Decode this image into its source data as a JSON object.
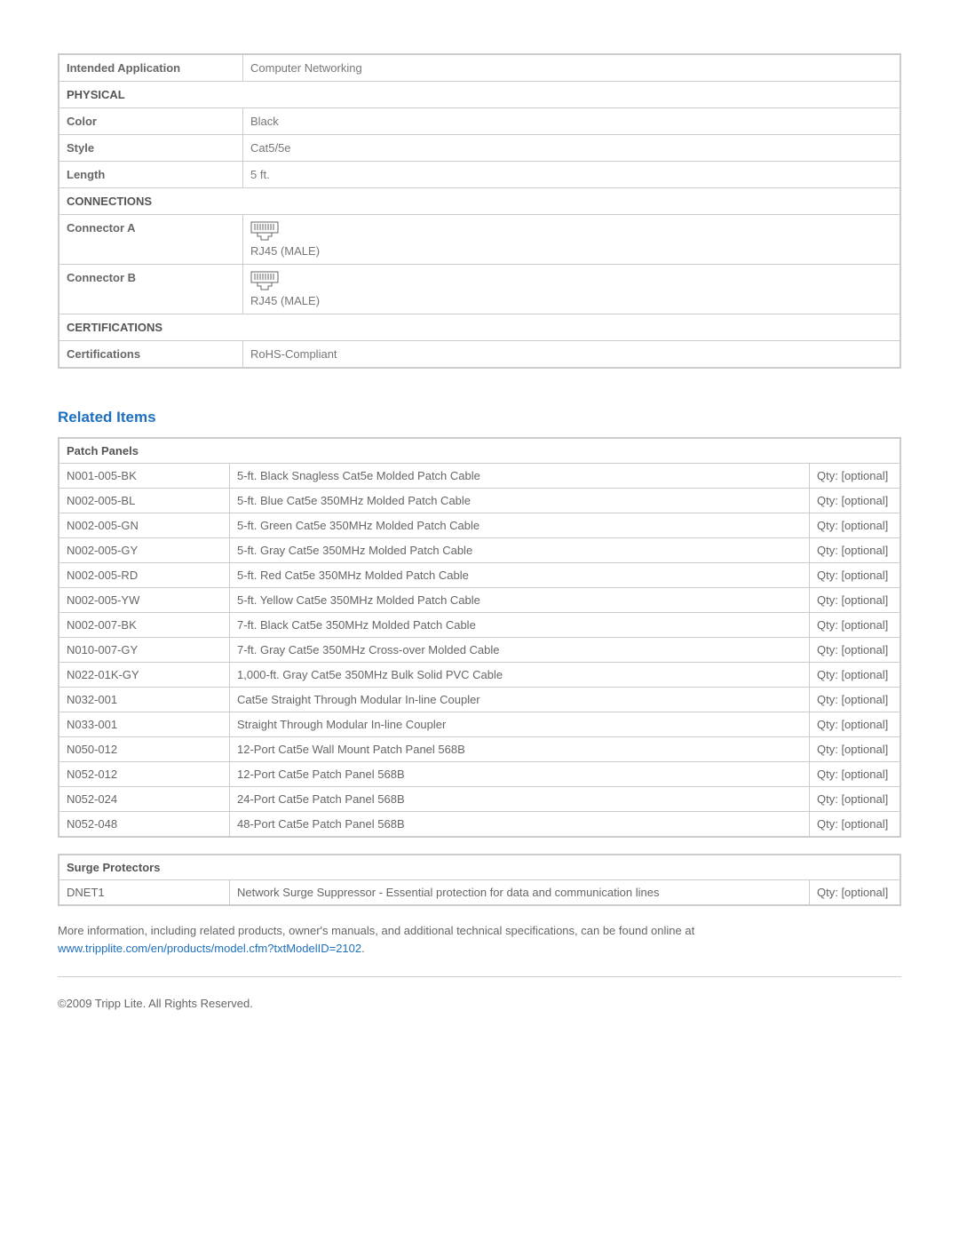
{
  "specs": {
    "intendedApplication": {
      "label": "Intended Application",
      "value": "Computer Networking"
    },
    "physical": {
      "section": "PHYSICAL",
      "color": {
        "label": "Color",
        "value": "Black"
      },
      "style": {
        "label": "Style",
        "value": "Cat5/5e"
      },
      "length": {
        "label": "Length",
        "value": "5 ft."
      }
    },
    "connections": {
      "section": "CONNECTIONS",
      "a": {
        "label": "Connector A",
        "value": "RJ45 (MALE)"
      },
      "b": {
        "label": "Connector B",
        "value": "RJ45 (MALE)"
      }
    },
    "certifications": {
      "section": "CERTIFICATIONS",
      "certs": {
        "label": "Certifications",
        "value": "RoHS-Compliant"
      }
    }
  },
  "related": {
    "heading": "Related Items",
    "patchPanels": {
      "category": "Patch Panels",
      "items": [
        {
          "sku": "N001-005-BK",
          "desc": "5-ft. Black Snagless Cat5e Molded Patch Cable",
          "qty": "Qty: [optional]"
        },
        {
          "sku": "N002-005-BL",
          "desc": "5-ft. Blue Cat5e 350MHz Molded Patch Cable",
          "qty": "Qty: [optional]"
        },
        {
          "sku": "N002-005-GN",
          "desc": "5-ft. Green Cat5e 350MHz Molded Patch Cable",
          "qty": "Qty: [optional]"
        },
        {
          "sku": "N002-005-GY",
          "desc": "5-ft. Gray Cat5e 350MHz Molded Patch Cable",
          "qty": "Qty: [optional]"
        },
        {
          "sku": "N002-005-RD",
          "desc": "5-ft. Red Cat5e 350MHz Molded Patch Cable",
          "qty": "Qty: [optional]"
        },
        {
          "sku": "N002-005-YW",
          "desc": "5-ft. Yellow Cat5e 350MHz Molded Patch Cable",
          "qty": "Qty: [optional]"
        },
        {
          "sku": "N002-007-BK",
          "desc": "7-ft. Black Cat5e 350MHz Molded Patch Cable",
          "qty": "Qty: [optional]"
        },
        {
          "sku": "N010-007-GY",
          "desc": "7-ft. Gray Cat5e 350MHz Cross-over Molded Cable",
          "qty": "Qty: [optional]"
        },
        {
          "sku": "N022-01K-GY",
          "desc": "1,000-ft. Gray Cat5e 350MHz Bulk Solid PVC Cable",
          "qty": "Qty: [optional]"
        },
        {
          "sku": "N032-001",
          "desc": "Cat5e Straight Through Modular In-line Coupler",
          "qty": "Qty: [optional]"
        },
        {
          "sku": "N033-001",
          "desc": "Straight Through Modular In-line Coupler",
          "qty": "Qty: [optional]"
        },
        {
          "sku": "N050-012",
          "desc": "12-Port Cat5e Wall Mount Patch Panel 568B",
          "qty": "Qty: [optional]"
        },
        {
          "sku": "N052-012",
          "desc": "12-Port Cat5e Patch Panel 568B",
          "qty": "Qty: [optional]"
        },
        {
          "sku": "N052-024",
          "desc": "24-Port Cat5e Patch Panel 568B",
          "qty": "Qty: [optional]"
        },
        {
          "sku": "N052-048",
          "desc": "48-Port Cat5e Patch Panel 568B",
          "qty": "Qty: [optional]"
        }
      ]
    },
    "surgeProtectors": {
      "category": "Surge Protectors",
      "items": [
        {
          "sku": "DNET1",
          "desc": "Network Surge Suppressor - Essential protection for data and communication lines",
          "qty": "Qty: [optional]"
        }
      ]
    }
  },
  "moreInfo": {
    "text": "More information, including related products, owner's manuals, and additional technical specifications, can be found online at ",
    "linkText": "www.tripplite.com/en/products/model.cfm?txtModelID=2102",
    "period": "."
  },
  "copyright": "©2009 Tripp Lite.  All Rights Reserved.",
  "colors": {
    "heading": "#1d6fbf",
    "border": "#cccccc",
    "text": "#666666"
  }
}
